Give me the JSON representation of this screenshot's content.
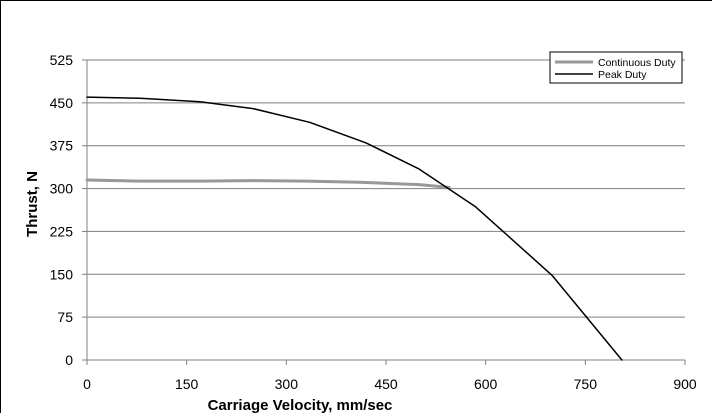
{
  "chart_data": {
    "type": "line",
    "title": "",
    "xlabel": "Carriage Velocity, mm/sec",
    "ylabel": "Thrust, N",
    "xlim": [
      0,
      900
    ],
    "ylim": [
      0,
      525
    ],
    "x_ticks": [
      0,
      150,
      300,
      450,
      600,
      750,
      900
    ],
    "y_ticks": [
      0,
      75,
      150,
      225,
      300,
      375,
      450,
      525
    ],
    "x_tick_labels": [
      "0",
      "150",
      "300",
      "450",
      "600",
      "750",
      "900"
    ],
    "y_tick_labels": [
      "0",
      "75",
      "150",
      "225",
      "300",
      "375",
      "450",
      "525"
    ],
    "grid": "horizontal",
    "legend_position": "top-right",
    "series": [
      {
        "name": "Continuous Duty",
        "color": "#999999",
        "x": [
          0,
          80,
          170,
          250,
          330,
          410,
          500,
          545
        ],
        "y": [
          315,
          313,
          313,
          314,
          313,
          311,
          307,
          302
        ]
      },
      {
        "name": "Peak Duty",
        "color": "#000000",
        "x": [
          0,
          80,
          170,
          250,
          335,
          420,
          500,
          585,
          700,
          805
        ],
        "y": [
          460,
          458,
          452,
          440,
          416,
          380,
          334,
          268,
          148,
          0
        ]
      }
    ]
  }
}
